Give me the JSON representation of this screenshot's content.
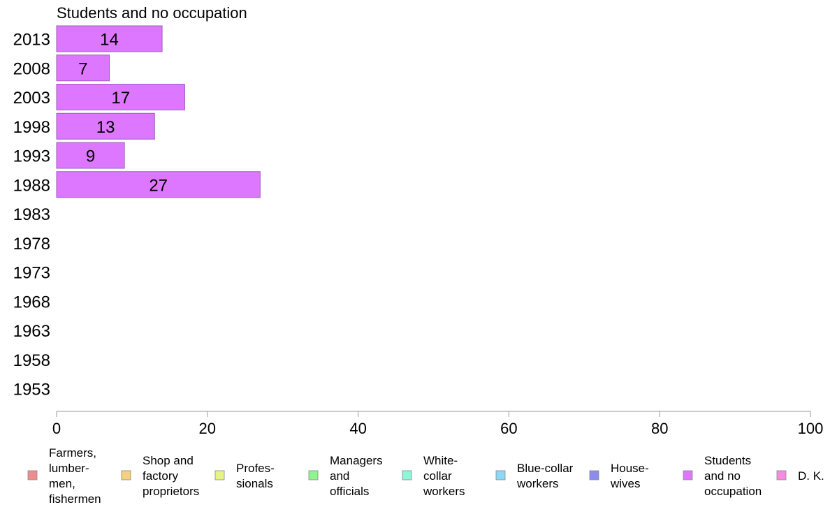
{
  "chart_data": {
    "type": "bar",
    "orientation": "horizontal",
    "title": "Students and no occupation",
    "xlabel": "",
    "ylabel": "",
    "xlim": [
      0,
      100
    ],
    "x_ticks": [
      "0",
      "20",
      "40",
      "60",
      "80",
      "100"
    ],
    "categories": [
      "2013",
      "2008",
      "2003",
      "1998",
      "1993",
      "1988",
      "1983",
      "1978",
      "1973",
      "1968",
      "1963",
      "1958",
      "1953"
    ],
    "series": [
      {
        "name": "Students and no occupation",
        "color": "#dd77ff",
        "values": [
          14,
          7,
          17,
          13,
          9,
          27,
          null,
          null,
          null,
          null,
          null,
          null,
          null
        ],
        "value_labels": [
          "14",
          "7",
          "17",
          "13",
          "9",
          "27",
          "",
          "",
          "",
          "",
          "",
          "",
          ""
        ]
      }
    ],
    "grid": false,
    "legend_position": "bottom",
    "legend": [
      {
        "lines": [
          "Farmers,",
          "lumber-",
          "men,",
          "fishermen"
        ],
        "color": "#f28c8c"
      },
      {
        "lines": [
          "Shop and",
          "factory",
          "proprietors"
        ],
        "color": "#f5d27a"
      },
      {
        "lines": [
          "Profes-",
          "sionals"
        ],
        "color": "#e6f582"
      },
      {
        "lines": [
          "Managers",
          "and",
          "officials"
        ],
        "color": "#8ef58e"
      },
      {
        "lines": [
          "White-",
          "collar",
          "workers"
        ],
        "color": "#8ef5d8"
      },
      {
        "lines": [
          "Blue-collar",
          "workers"
        ],
        "color": "#8cd8f5"
      },
      {
        "lines": [
          "House-",
          "wives"
        ],
        "color": "#8c8cf0"
      },
      {
        "lines": [
          "Students",
          "and no",
          "occupation"
        ],
        "color": "#dd77ff"
      },
      {
        "lines": [
          "D. K."
        ],
        "color": "#f58ce0"
      }
    ]
  }
}
